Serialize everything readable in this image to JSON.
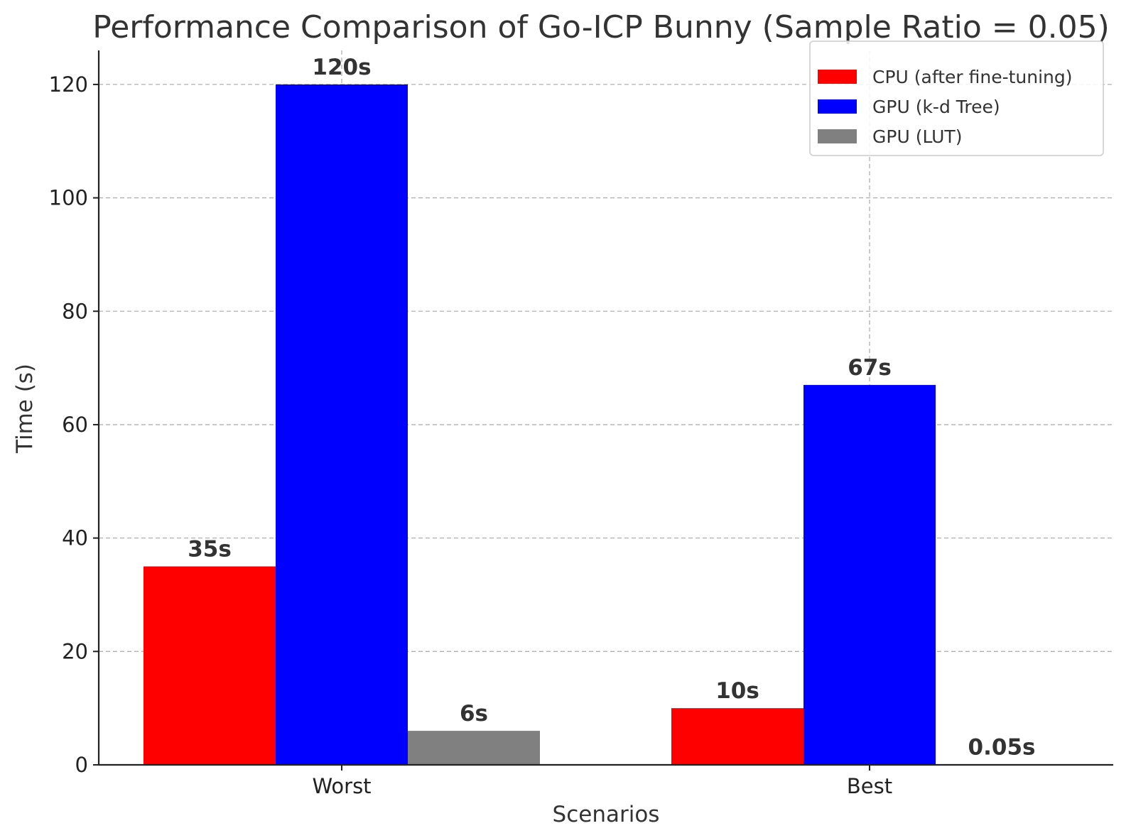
{
  "chart_data": {
    "type": "bar",
    "title": "Performance Comparison of Go-ICP Bunny (Sample Ratio = 0.05)",
    "xlabel": "Scenarios",
    "ylabel": "Time (s)",
    "categories": [
      "Worst",
      "Best"
    ],
    "series": [
      {
        "name": "CPU (after fine-tuning)",
        "color": "#ff0000",
        "values": [
          35,
          10
        ],
        "labels": [
          "35s",
          "10s"
        ]
      },
      {
        "name": "GPU (k-d Tree)",
        "color": "#0000ff",
        "values": [
          120,
          67
        ],
        "labels": [
          "120s",
          "67s"
        ]
      },
      {
        "name": "GPU (LUT)",
        "color": "#808080",
        "values": [
          6,
          0.05
        ],
        "labels": [
          "6s",
          "0.05s"
        ]
      }
    ],
    "ylim": [
      0,
      126
    ],
    "yticks": [
      0,
      20,
      40,
      60,
      80,
      100,
      120
    ],
    "grid": true,
    "legend_position": "top-right"
  }
}
